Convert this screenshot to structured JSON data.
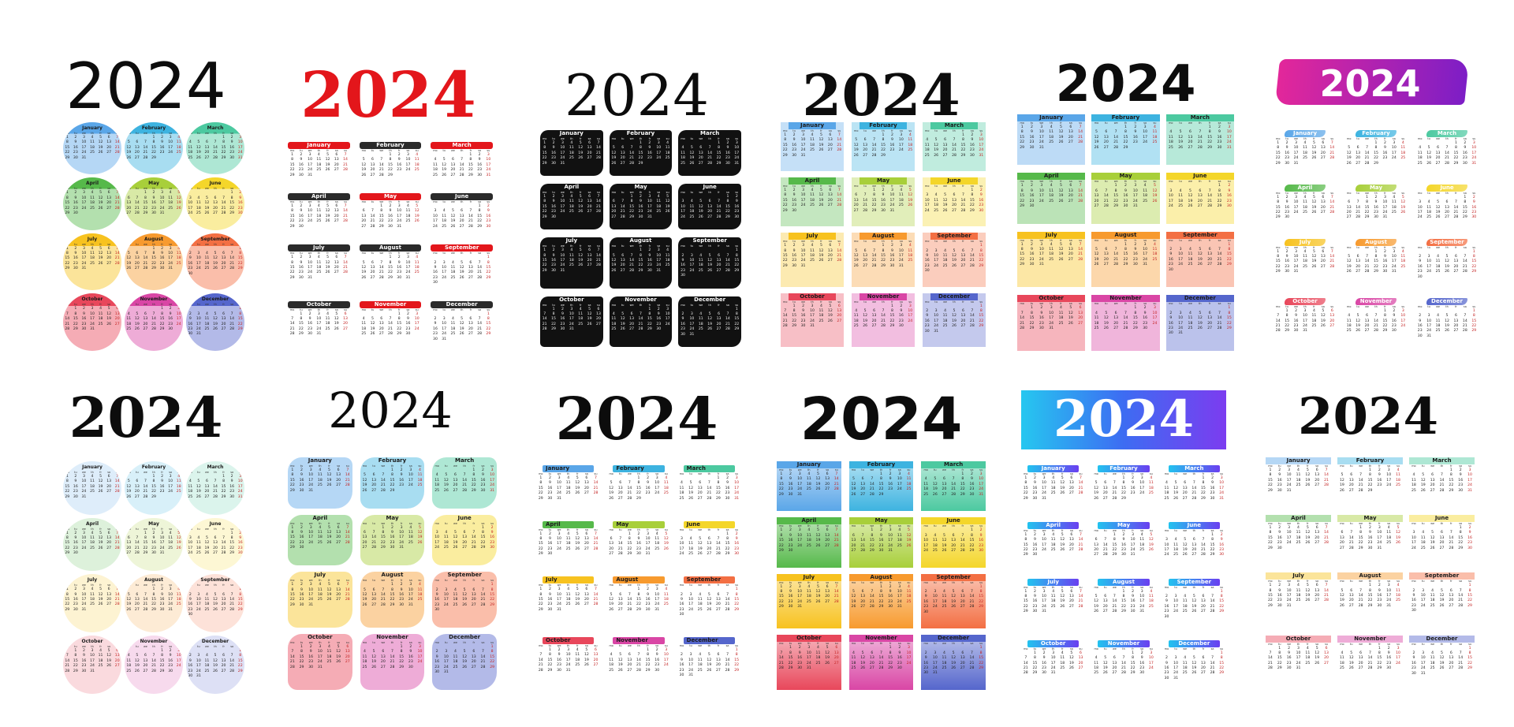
{
  "year": "2024",
  "months": [
    "January",
    "February",
    "March",
    "April",
    "May",
    "June",
    "July",
    "August",
    "September",
    "October",
    "November",
    "December"
  ],
  "weekdays": [
    "mo",
    "tu",
    "we",
    "th",
    "fr",
    "sa",
    "su"
  ],
  "month_offsets": [
    0,
    3,
    4,
    0,
    2,
    5,
    0,
    3,
    6,
    1,
    4,
    6
  ],
  "month_lengths": [
    31,
    29,
    31,
    30,
    31,
    30,
    31,
    31,
    30,
    31,
    30,
    31
  ],
  "colors": {
    "rainbow": [
      "#5aa6e8",
      "#3db3e0",
      "#4cc9a0",
      "#56b94a",
      "#a8cf3a",
      "#f4d62a",
      "#f7c21f",
      "#f79a2e",
      "#f36f43",
      "#e8475b",
      "#d946a5",
      "#5566cc"
    ],
    "red_accent": "#e3161b",
    "black": "#111111",
    "magenta": "#a61fb8",
    "blue_banner": "#2f6cf0"
  },
  "panels": [
    {
      "id": "circle-color"
    },
    {
      "id": "red-header"
    },
    {
      "id": "black-brush"
    },
    {
      "id": "tab-color"
    },
    {
      "id": "block-color"
    },
    {
      "id": "brush-color"
    },
    {
      "id": "circle-pastel"
    },
    {
      "id": "blob-pastel"
    },
    {
      "id": "tab-thin"
    },
    {
      "id": "block-gradient"
    },
    {
      "id": "gradient-banner"
    },
    {
      "id": "pastel-stripe"
    }
  ]
}
